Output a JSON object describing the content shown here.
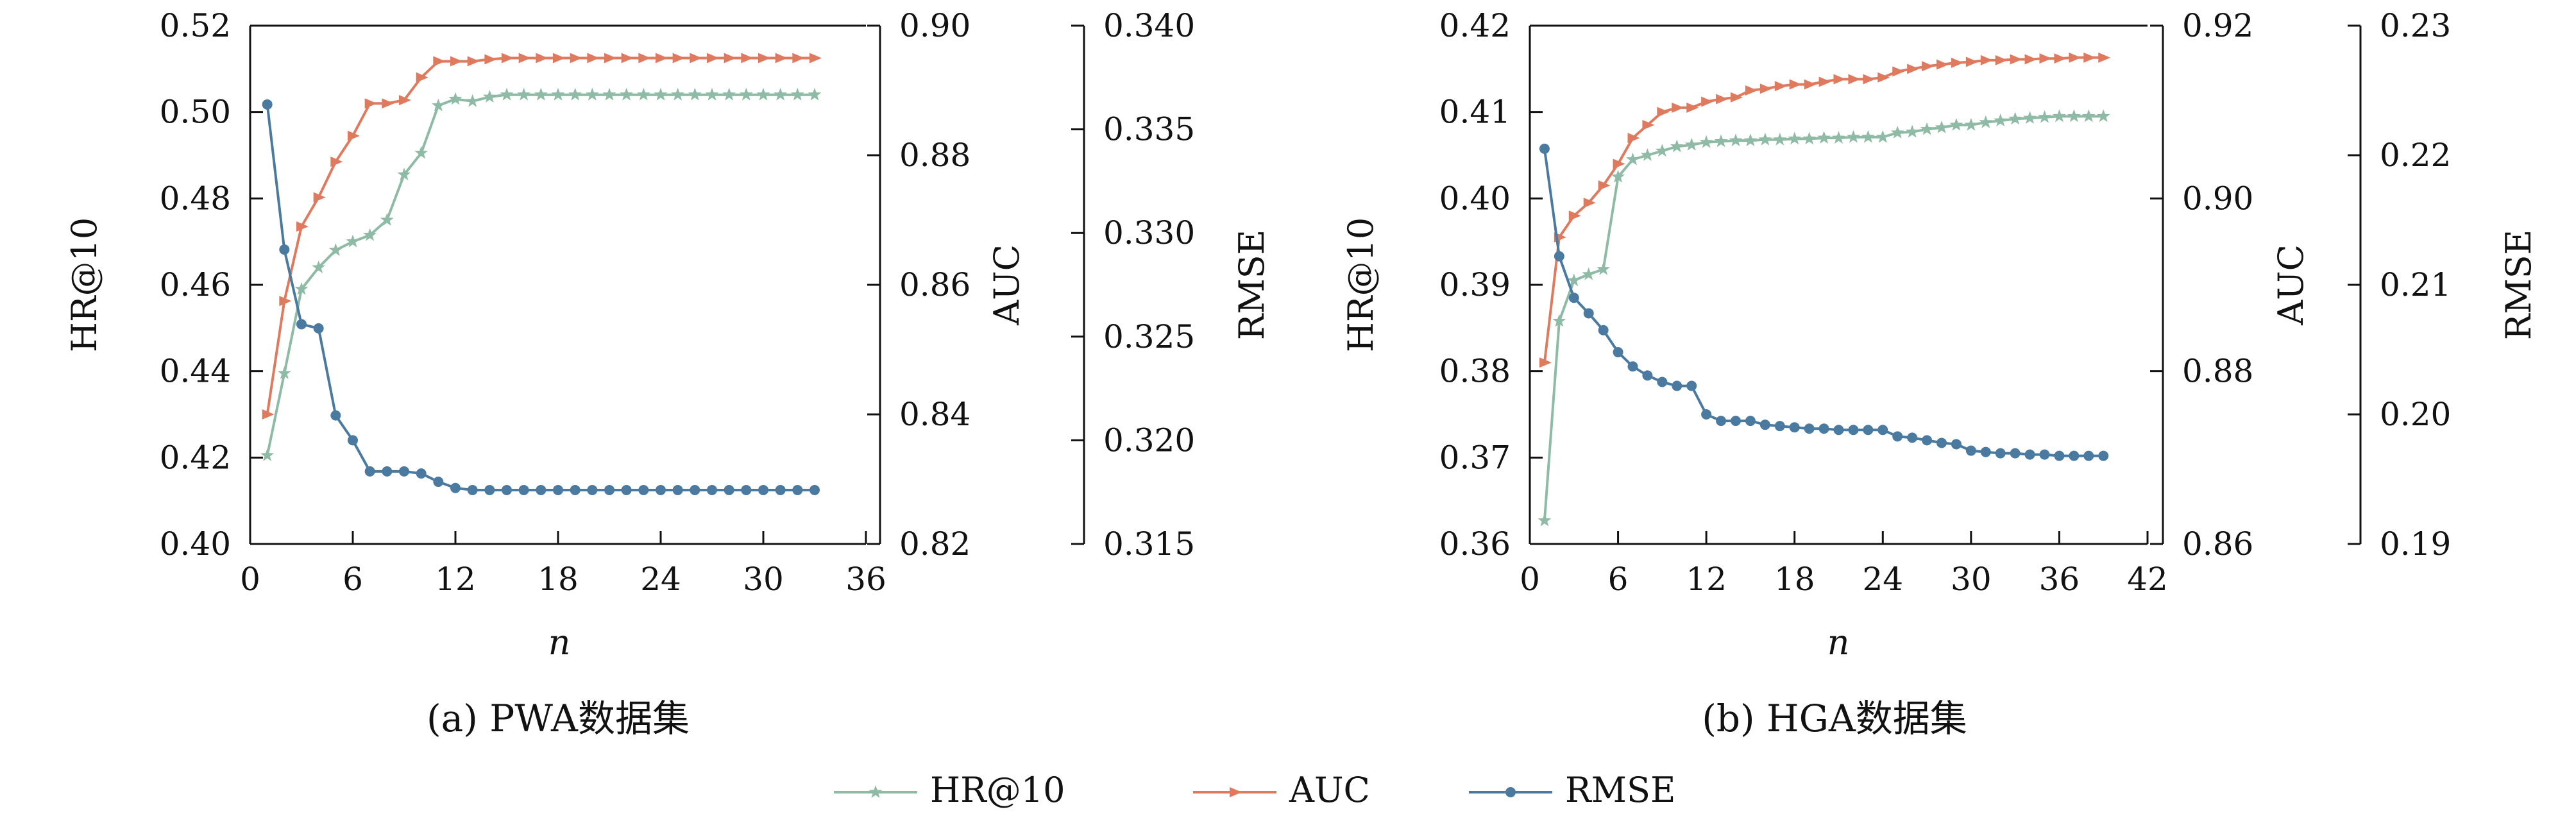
{
  "colors": {
    "hr": "#8fbba6",
    "auc": "#e07a5f",
    "rmse": "#4b7aa0"
  },
  "legend": [
    {
      "key": "hr",
      "label": "HR@10"
    },
    {
      "key": "auc",
      "label": "AUC"
    },
    {
      "key": "rmse",
      "label": "RMSE"
    }
  ],
  "chart_data": [
    {
      "type": "line",
      "caption": "(a) PWA数据集",
      "xlabel": "n",
      "xlim": [
        0,
        36
      ],
      "xticks": [
        "0",
        "6",
        "12",
        "18",
        "24",
        "30",
        "36"
      ],
      "axes": [
        {
          "key": "hr",
          "label": "HR@10",
          "lim": [
            0.4,
            0.52
          ],
          "ticks": [
            "0.40",
            "0.42",
            "0.44",
            "0.46",
            "0.48",
            "0.50",
            "0.52"
          ]
        },
        {
          "key": "auc",
          "label": "AUC",
          "lim": [
            0.82,
            0.9
          ],
          "ticks": [
            "0.82",
            "0.84",
            "0.86",
            "0.88",
            "0.90"
          ]
        },
        {
          "key": "rmse",
          "label": "RMSE",
          "lim": [
            0.315,
            0.34
          ],
          "ticks": [
            "0.315",
            "0.320",
            "0.325",
            "0.330",
            "0.335",
            "0.340"
          ]
        }
      ],
      "x": [
        1,
        2,
        3,
        4,
        5,
        6,
        7,
        8,
        9,
        10,
        11,
        12,
        13,
        14,
        15,
        16,
        17,
        18,
        19,
        20,
        21,
        22,
        23,
        24,
        25,
        26,
        27,
        28,
        29,
        30,
        31,
        32,
        33
      ],
      "series": [
        {
          "name": "HR@10",
          "key": "hr",
          "marker": "star",
          "values": [
            0.4205,
            0.4395,
            0.459,
            0.464,
            0.468,
            0.47,
            0.4715,
            0.475,
            0.4855,
            0.4905,
            0.5015,
            0.503,
            0.5025,
            0.5035,
            0.504,
            0.504,
            0.504,
            0.504,
            0.504,
            0.504,
            0.504,
            0.504,
            0.504,
            0.504,
            0.504,
            0.504,
            0.504,
            0.504,
            0.504,
            0.504,
            0.504,
            0.504,
            0.504
          ]
        },
        {
          "name": "AUC",
          "key": "auc",
          "marker": "tri",
          "values": [
            0.84,
            0.8575,
            0.869,
            0.8735,
            0.879,
            0.883,
            0.888,
            0.888,
            0.8885,
            0.892,
            0.8945,
            0.8945,
            0.8945,
            0.8948,
            0.895,
            0.895,
            0.895,
            0.895,
            0.895,
            0.895,
            0.895,
            0.895,
            0.895,
            0.895,
            0.895,
            0.895,
            0.895,
            0.895,
            0.895,
            0.895,
            0.895,
            0.895,
            0.895
          ]
        },
        {
          "name": "RMSE",
          "key": "rmse",
          "marker": "dot",
          "values": [
            0.3362,
            0.3292,
            0.3256,
            0.3254,
            0.3212,
            0.32,
            0.3185,
            0.3185,
            0.3185,
            0.3184,
            0.318,
            0.3177,
            0.3176,
            0.3176,
            0.3176,
            0.3176,
            0.3176,
            0.3176,
            0.3176,
            0.3176,
            0.3176,
            0.3176,
            0.3176,
            0.3176,
            0.3176,
            0.3176,
            0.3176,
            0.3176,
            0.3176,
            0.3176,
            0.3176,
            0.3176,
            0.3176
          ]
        }
      ]
    },
    {
      "type": "line",
      "caption": "(b) HGA数据集",
      "xlabel": "n",
      "xlim": [
        0,
        42
      ],
      "xticks": [
        "0",
        "6",
        "12",
        "18",
        "24",
        "30",
        "36",
        "42"
      ],
      "axes": [
        {
          "key": "hr",
          "label": "HR@10",
          "lim": [
            0.36,
            0.42
          ],
          "ticks": [
            "0.36",
            "0.37",
            "0.38",
            "0.39",
            "0.40",
            "0.41",
            "0.42"
          ]
        },
        {
          "key": "auc",
          "label": "AUC",
          "lim": [
            0.86,
            0.92
          ],
          "ticks": [
            "0.86",
            "0.88",
            "0.90",
            "0.92"
          ]
        },
        {
          "key": "rmse",
          "label": "RMSE",
          "lim": [
            0.19,
            0.23
          ],
          "ticks": [
            "0.19",
            "0.20",
            "0.21",
            "0.22",
            "0.23"
          ]
        }
      ],
      "x": [
        1,
        2,
        3,
        4,
        5,
        6,
        7,
        8,
        9,
        10,
        11,
        12,
        13,
        14,
        15,
        16,
        17,
        18,
        19,
        20,
        21,
        22,
        23,
        24,
        25,
        26,
        27,
        28,
        29,
        30,
        31,
        32,
        33,
        34,
        35,
        36,
        37,
        38,
        39
      ],
      "series": [
        {
          "name": "HR@10",
          "key": "hr",
          "marker": "star",
          "values": [
            0.3627,
            0.3858,
            0.3905,
            0.3912,
            0.3918,
            0.4025,
            0.4045,
            0.405,
            0.4055,
            0.406,
            0.4062,
            0.4065,
            0.4066,
            0.4067,
            0.4067,
            0.4068,
            0.4068,
            0.4069,
            0.4069,
            0.407,
            0.407,
            0.4071,
            0.4071,
            0.4071,
            0.4076,
            0.4077,
            0.408,
            0.4082,
            0.4085,
            0.4085,
            0.4088,
            0.409,
            0.4092,
            0.4093,
            0.4094,
            0.4095,
            0.4095,
            0.4095,
            0.4095
          ]
        },
        {
          "name": "AUC",
          "key": "auc",
          "marker": "tri",
          "values": [
            0.881,
            0.8955,
            0.898,
            0.8995,
            0.9015,
            0.904,
            0.907,
            0.9085,
            0.91,
            0.9105,
            0.9105,
            0.9112,
            0.9115,
            0.9117,
            0.9125,
            0.9127,
            0.913,
            0.9132,
            0.9132,
            0.9135,
            0.9138,
            0.9138,
            0.9138,
            0.914,
            0.9147,
            0.915,
            0.9153,
            0.9155,
            0.9157,
            0.9158,
            0.916,
            0.916,
            0.9161,
            0.9161,
            0.9162,
            0.9162,
            0.9163,
            0.9163,
            0.9163
          ]
        },
        {
          "name": "RMSE",
          "key": "rmse",
          "marker": "dot",
          "values": [
            0.2205,
            0.2122,
            0.209,
            0.2078,
            0.2065,
            0.2048,
            0.2037,
            0.203,
            0.2025,
            0.2022,
            0.2022,
            0.2,
            0.1995,
            0.1995,
            0.1995,
            0.1992,
            0.1991,
            0.199,
            0.1989,
            0.1989,
            0.1988,
            0.1988,
            0.1988,
            0.1988,
            0.1983,
            0.1982,
            0.198,
            0.1978,
            0.1977,
            0.1972,
            0.1971,
            0.197,
            0.197,
            0.1969,
            0.1969,
            0.1968,
            0.1968,
            0.1968,
            0.1968
          ]
        }
      ]
    }
  ]
}
